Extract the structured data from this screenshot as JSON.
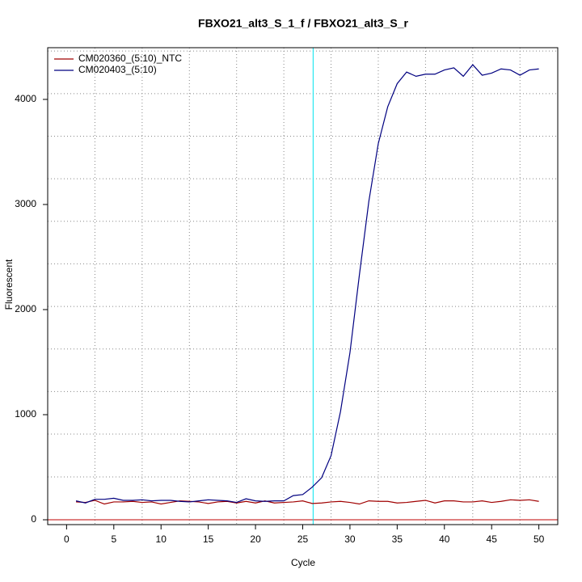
{
  "chart_data": {
    "type": "line",
    "title": "FBXO21_alt3_S_1_f / FBXO21_alt3_S_r",
    "x_label": "Cycle",
    "y_label": "Fluorescent",
    "x": [
      1,
      2,
      3,
      4,
      5,
      6,
      7,
      8,
      9,
      10,
      11,
      12,
      13,
      14,
      15,
      16,
      17,
      18,
      19,
      20,
      21,
      22,
      23,
      24,
      25,
      26,
      27,
      28,
      29,
      30,
      31,
      32,
      33,
      34,
      35,
      36,
      37,
      38,
      39,
      40,
      41,
      42,
      43,
      44,
      45,
      46,
      47,
      48,
      49,
      50
    ],
    "series": [
      {
        "name": "CM020360_(5:10)_NTC",
        "color": "#a00000",
        "values": [
          170,
          165,
          185,
          150,
          170,
          170,
          175,
          165,
          170,
          150,
          165,
          180,
          175,
          170,
          155,
          170,
          175,
          160,
          175,
          160,
          180,
          160,
          165,
          170,
          180,
          155,
          160,
          170,
          175,
          165,
          150,
          180,
          175,
          175,
          160,
          165,
          175,
          185,
          160,
          180,
          180,
          170,
          170,
          180,
          165,
          175,
          190,
          185,
          190,
          175
        ]
      },
      {
        "name": "CM020403_(5:10)",
        "color": "#000080",
        "values": [
          180,
          160,
          195,
          195,
          205,
          185,
          185,
          190,
          180,
          185,
          185,
          175,
          170,
          180,
          190,
          185,
          180,
          165,
          200,
          180,
          175,
          180,
          180,
          230,
          240,
          310,
          400,
          610,
          1030,
          1590,
          2330,
          3030,
          3580,
          3930,
          4150,
          4260,
          4220,
          4240,
          4240,
          4280,
          4300,
          4220,
          4330,
          4230,
          4250,
          4290,
          4280,
          4230,
          4280,
          4290
        ]
      }
    ],
    "xlim": [
      -2,
      52
    ],
    "ylim": [
      -46,
      4492
    ],
    "xticks": [
      0,
      5,
      10,
      15,
      20,
      25,
      30,
      35,
      40,
      45,
      50
    ],
    "yticks": [
      0,
      1000,
      2000,
      3000,
      4000
    ],
    "xgrid": [
      3,
      8,
      13,
      18,
      23,
      28,
      33,
      38,
      43,
      48
    ],
    "ygrid": [
      408,
      815,
      1220,
      1625,
      2030,
      2435,
      2840,
      3245,
      3650,
      4055,
      4460
    ],
    "vline": 26.1,
    "vline_color": "#00e5ee",
    "hline": 0,
    "hline_color": "#c00000",
    "legend_position": "top-left"
  }
}
